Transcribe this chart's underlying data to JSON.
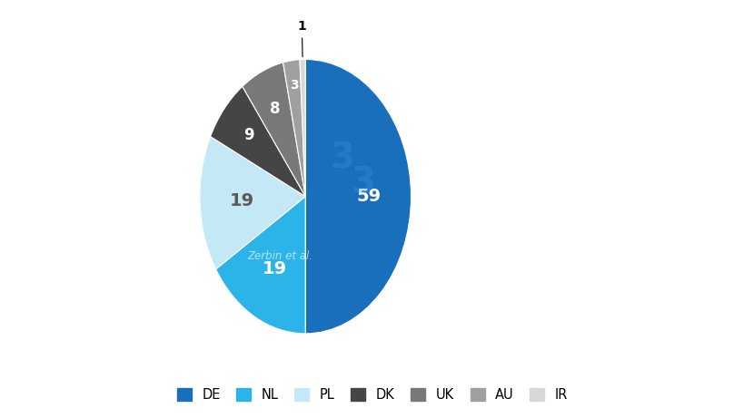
{
  "labels": [
    "DE",
    "NL",
    "PL",
    "DK",
    "UK",
    "AU",
    "IR"
  ],
  "values": [
    59,
    19,
    19,
    9,
    8,
    3,
    1
  ],
  "colors": [
    "#1a6fbd",
    "#2ab4e8",
    "#c5e8f7",
    "#454545",
    "#797979",
    "#a0a0a0",
    "#d8d8d8"
  ],
  "label_colors_inside": [
    "white",
    "white",
    "#5a5a5a",
    "white",
    "white",
    "white",
    "#5a5a5a"
  ],
  "watermark_text": "Zerbin et al.",
  "background_color": "#ffffff",
  "legend_labels": [
    "DE",
    "NL",
    "PL",
    "DK",
    "UK",
    "AU",
    "IR"
  ],
  "figsize": [
    8.2,
    4.61
  ],
  "dpi": 100
}
